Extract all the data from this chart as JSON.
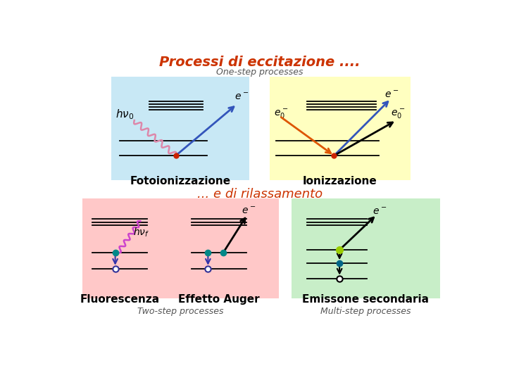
{
  "title": "Processi di eccitazione ....",
  "title_color": "#cc3300",
  "title_fontsize": 14,
  "bg_color": "#ffffff",
  "subtitle_top": "One-step processes",
  "subtitle_mid": "... e di rilassamento",
  "subtitle_mid_color": "#cc3300",
  "subtitle_bot_left": "Two-step processes",
  "subtitle_bot_right": "Multi-step processes",
  "box1_color": "#c8e8f5",
  "box2_color": "#ffffc0",
  "box3_color": "#ffc8c8",
  "box4_color": "#c8eec8",
  "label1": "Fotoionizzazione",
  "label2": "Ionizzazione",
  "label3": "Fluorescenza",
  "label4": "Effetto Auger",
  "label5": "Emissone secondaria"
}
